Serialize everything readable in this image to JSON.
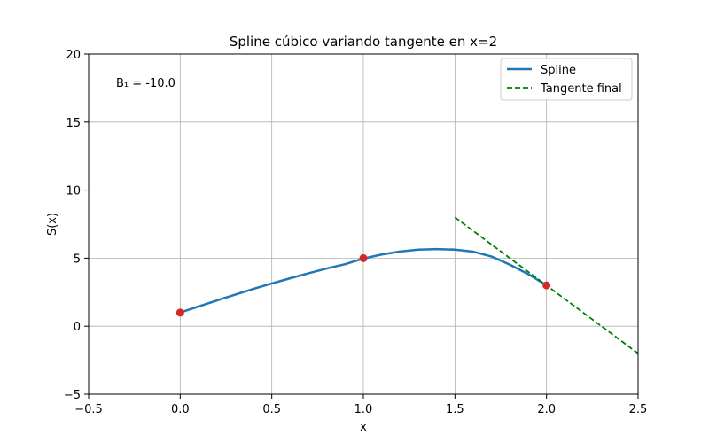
{
  "chart_data": {
    "type": "line",
    "title": "Spline cúbico variando tangente en x=2",
    "xlabel": "x",
    "ylabel": "S(x)",
    "xlim": [
      -0.5,
      2.5
    ],
    "ylim": [
      -5,
      20
    ],
    "xticks": [
      -0.5,
      0.0,
      0.5,
      1.0,
      1.5,
      2.0,
      2.5
    ],
    "xtick_labels": [
      "−0.5",
      "0.0",
      "0.5",
      "1.0",
      "1.5",
      "2.0",
      "2.5"
    ],
    "yticks": [
      -5,
      0,
      5,
      10,
      15,
      20
    ],
    "ytick_labels": [
      "−5",
      "0",
      "5",
      "10",
      "15",
      "20"
    ],
    "grid": true,
    "legend_position": "top-right",
    "annotation": "B₁ = -10.0",
    "series": [
      {
        "name": "Spline",
        "kind": "line",
        "style": "solid",
        "color": "#1f77b4",
        "x": [
          0.0,
          0.1,
          0.2,
          0.3,
          0.4,
          0.5,
          0.6,
          0.7,
          0.8,
          0.9,
          1.0,
          1.1,
          1.2,
          1.3,
          1.4,
          1.5,
          1.6,
          1.7,
          1.8,
          1.9,
          2.0
        ],
        "y": [
          1.0,
          1.45,
          1.89,
          2.32,
          2.74,
          3.14,
          3.52,
          3.89,
          4.24,
          4.56,
          4.97,
          5.27,
          5.49,
          5.63,
          5.67,
          5.63,
          5.48,
          5.12,
          4.52,
          3.83,
          3.0
        ]
      },
      {
        "name": "Tangente final",
        "kind": "line",
        "style": "dashed",
        "color": "#008000",
        "x": [
          1.5,
          2.5
        ],
        "y": [
          8.0,
          -2.0
        ]
      }
    ],
    "points": {
      "color": "#d62728",
      "x": [
        0.0,
        1.0,
        2.0
      ],
      "y": [
        1.0,
        5.0,
        3.0
      ]
    }
  }
}
